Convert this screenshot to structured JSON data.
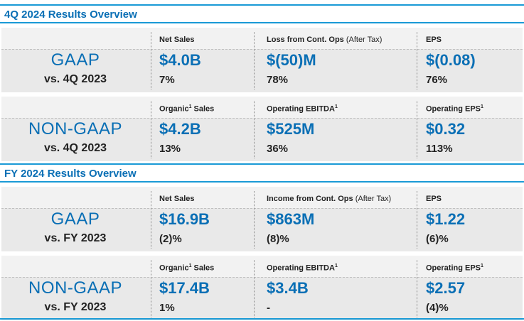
{
  "sections": [
    {
      "title": "4Q 2024 Results Overview",
      "rows": [
        {
          "label": "GAAP",
          "sub": "vs. 4Q 2023",
          "cols": [
            {
              "label": "Net Sales",
              "sup": "",
              "suffix": "",
              "light": "",
              "value": "$4.0B",
              "change": "7%"
            },
            {
              "label": "Loss from Cont. Ops",
              "sup": "",
              "suffix": "",
              "light": "(After Tax)",
              "value": "$(50)M",
              "change": "78%"
            },
            {
              "label": "EPS",
              "sup": "",
              "suffix": "",
              "light": "",
              "value": "$(0.08)",
              "change": "76%"
            }
          ]
        },
        {
          "label": "NON-GAAP",
          "sub": "vs. 4Q 2023",
          "cols": [
            {
              "label": "Organic",
              "sup": "1",
              "suffix": " Sales",
              "light": "",
              "value": "$4.2B",
              "change": "13%"
            },
            {
              "label": "Operating EBITDA",
              "sup": "1",
              "suffix": "",
              "light": "",
              "value": "$525M",
              "change": "36%"
            },
            {
              "label": "Operating EPS",
              "sup": "1",
              "suffix": "",
              "light": "",
              "value": "$0.32",
              "change": "113%"
            }
          ]
        }
      ]
    },
    {
      "title": "FY 2024 Results Overview",
      "rows": [
        {
          "label": "GAAP",
          "sub": "vs. FY 2023",
          "cols": [
            {
              "label": "Net Sales",
              "sup": "",
              "suffix": "",
              "light": "",
              "value": "$16.9B",
              "change": "(2)%"
            },
            {
              "label": "Income from Cont. Ops",
              "sup": "",
              "suffix": "",
              "light": "(After Tax)",
              "value": "$863M",
              "change": "(8)%"
            },
            {
              "label": "EPS",
              "sup": "",
              "suffix": "",
              "light": "",
              "value": "$1.22",
              "change": "(6)%"
            }
          ]
        },
        {
          "label": "NON-GAAP",
          "sub": "vs. FY 2023",
          "cols": [
            {
              "label": "Organic",
              "sup": "1",
              "suffix": " Sales",
              "light": "",
              "value": "$17.4B",
              "change": "1%"
            },
            {
              "label": "Operating EBITDA",
              "sup": "1",
              "suffix": "",
              "light": "",
              "value": "$3.4B",
              "change": "-"
            },
            {
              "label": "Operating EPS",
              "sup": "1",
              "suffix": "",
              "light": "",
              "value": "$2.57",
              "change": "(4)%"
            }
          ]
        }
      ]
    }
  ]
}
